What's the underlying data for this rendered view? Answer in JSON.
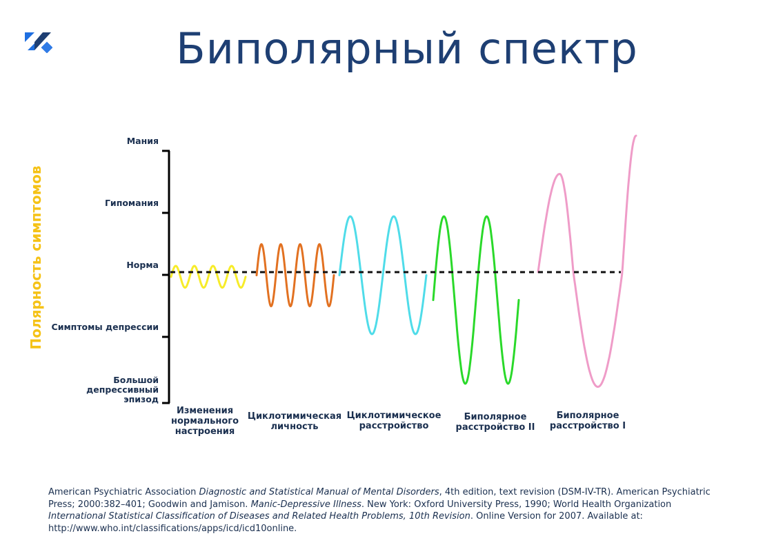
{
  "title": "Биполярный спектр",
  "y_axis": {
    "label": "Полярность симптомов",
    "label_color": "#f5c216",
    "levels": [
      {
        "lines": [
          "Мания"
        ],
        "value": 2
      },
      {
        "lines": [
          "Гипомания"
        ],
        "value": 1
      },
      {
        "lines": [
          "Норма"
        ],
        "value": 0
      },
      {
        "lines": [
          "Симптомы депрессии"
        ],
        "value": -1
      },
      {
        "lines": [
          "Большой",
          "депрессивный",
          "эпизод"
        ],
        "value": -2
      }
    ]
  },
  "categories": [
    {
      "lines": [
        "Изменения",
        "нормального",
        "настроения"
      ],
      "color": "#f7ec2a",
      "min": -0.25,
      "max": 0.1
    },
    {
      "lines": [
        "Циклотимическая",
        "личность"
      ],
      "color": "#e27121",
      "min": -0.55,
      "max": 0.45
    },
    {
      "lines": [
        "Циклотимическое",
        "расстройство"
      ],
      "color": "#4fdce9",
      "min": -1.0,
      "max": 0.9
    },
    {
      "lines": [
        "Биполярное",
        "расстройство II"
      ],
      "color": "#2ad92a",
      "min": -1.8,
      "max": 0.9
    },
    {
      "lines": [
        "Биполярное",
        "расстройство I"
      ],
      "color": "#ef9cc8",
      "min": -1.85,
      "max": 2.2
    }
  ],
  "baseline": {
    "style": "dashed",
    "color": "#111111"
  },
  "footnote": [
    {
      "t": "American Psychiatric Association "
    },
    {
      "t": "Diagnostic and Statistical Manual of Mental Disorders",
      "i": true
    },
    {
      "t": ", 4th edition, text revision (DSM-IV-TR). American Psychiatric Press; 2000:382–401; Goodwin and Jamison. "
    },
    {
      "t": "Manic-Depressive Illness",
      "i": true
    },
    {
      "t": ". New York: Oxford University Press, 1990; World Health Organization "
    },
    {
      "t": "International Statistical Classification of Diseases and Related Health Problems, 10th Revision",
      "i": true
    },
    {
      "t": ". Online Version for 2007. Available at: http://www.who.int/classifications/apps/icd/icd10online."
    }
  ],
  "logo_colors": [
    "#2f7be6",
    "#1e3f73"
  ]
}
